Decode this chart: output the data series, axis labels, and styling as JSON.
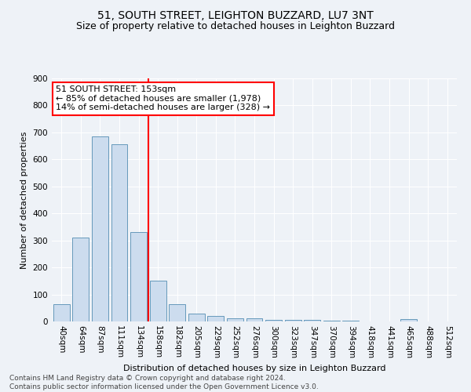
{
  "title": "51, SOUTH STREET, LEIGHTON BUZZARD, LU7 3NT",
  "subtitle": "Size of property relative to detached houses in Leighton Buzzard",
  "xlabel": "Distribution of detached houses by size in Leighton Buzzard",
  "ylabel": "Number of detached properties",
  "footer_line1": "Contains HM Land Registry data © Crown copyright and database right 2024.",
  "footer_line2": "Contains public sector information licensed under the Open Government Licence v3.0.",
  "bar_labels": [
    "40sqm",
    "64sqm",
    "87sqm",
    "111sqm",
    "134sqm",
    "158sqm",
    "182sqm",
    "205sqm",
    "229sqm",
    "252sqm",
    "276sqm",
    "300sqm",
    "323sqm",
    "347sqm",
    "370sqm",
    "394sqm",
    "418sqm",
    "441sqm",
    "465sqm",
    "488sqm",
    "512sqm"
  ],
  "bar_values": [
    63,
    310,
    686,
    655,
    330,
    152,
    65,
    30,
    20,
    12,
    12,
    5,
    5,
    5,
    2,
    2,
    0,
    0,
    10,
    0,
    0
  ],
  "bar_color": "#ccdcee",
  "bar_edge_color": "#6699bb",
  "highlight_line_color": "red",
  "highlight_bar_index": 5,
  "annotation_title": "51 SOUTH STREET: 153sqm",
  "annotation_line1": "← 85% of detached houses are smaller (1,978)",
  "annotation_line2": "14% of semi-detached houses are larger (328) →",
  "annotation_box_color": "red",
  "ylim": [
    0,
    900
  ],
  "yticks": [
    0,
    100,
    200,
    300,
    400,
    500,
    600,
    700,
    800,
    900
  ],
  "background_color": "#eef2f7",
  "grid_color": "white",
  "title_fontsize": 10,
  "subtitle_fontsize": 9,
  "ylabel_fontsize": 8,
  "xlabel_fontsize": 8,
  "tick_fontsize": 7.5,
  "footer_fontsize": 6.5,
  "annotation_fontsize": 8
}
